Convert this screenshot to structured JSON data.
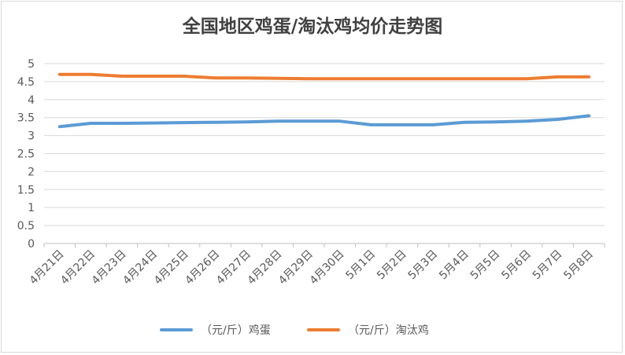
{
  "chart_data": {
    "type": "line",
    "title": "全国地区鸡蛋/淘汰鸡均价走势图",
    "categories": [
      "4月21日",
      "4月22日",
      "4月23日",
      "4月24日",
      "4月25日",
      "4月26日",
      "4月27日",
      "4月28日",
      "4月29日",
      "4月30日",
      "5月1日",
      "5月2日",
      "5月3日",
      "5月4日",
      "5月5日",
      "5月6日",
      "5月7日",
      "5月8日"
    ],
    "y_ticks": [
      "0",
      "0.5",
      "1",
      "1.5",
      "2",
      "2.5",
      "3",
      "3.5",
      "4",
      "4.5",
      "5"
    ],
    "ylim": [
      0,
      5
    ],
    "grid": true,
    "legend_position": "bottom",
    "series": [
      {
        "name": "（元/斤）鸡蛋",
        "color": "#5b9bd5",
        "values": [
          3.25,
          3.34,
          3.34,
          3.35,
          3.36,
          3.37,
          3.38,
          3.4,
          3.4,
          3.4,
          3.3,
          3.3,
          3.3,
          3.37,
          3.38,
          3.4,
          3.45,
          3.55
        ]
      },
      {
        "name": "（元/斤）淘汰鸡",
        "color": "#ed7d31",
        "values": [
          4.7,
          4.7,
          4.65,
          4.65,
          4.65,
          4.6,
          4.6,
          4.59,
          4.58,
          4.58,
          4.58,
          4.58,
          4.58,
          4.58,
          4.58,
          4.58,
          4.63,
          4.63
        ]
      }
    ]
  }
}
